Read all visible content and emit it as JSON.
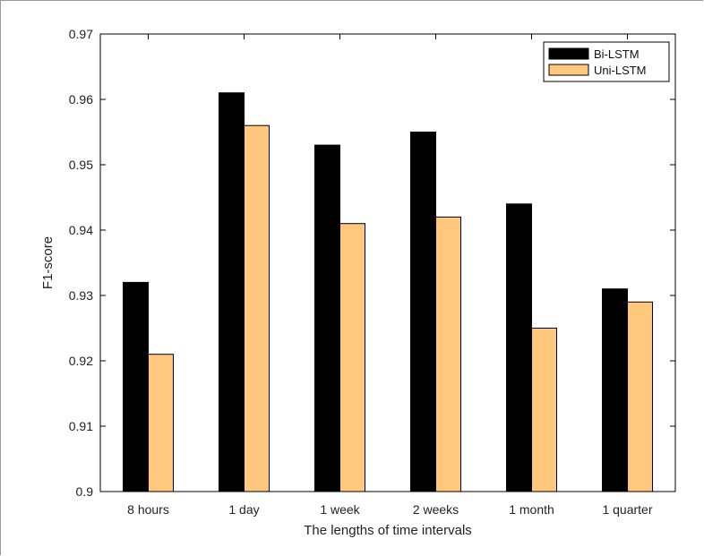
{
  "chart_data": {
    "type": "bar",
    "title": "",
    "xlabel": "The lengths of time intervals",
    "ylabel": "F1-score",
    "categories": [
      "8 hours",
      "1 day",
      "1 week",
      "2 weeks",
      "1 month",
      "1 quarter"
    ],
    "series": [
      {
        "name": "Bi-LSTM",
        "color": "#000000",
        "values": [
          0.932,
          0.961,
          0.953,
          0.955,
          0.944,
          0.931
        ]
      },
      {
        "name": "Uni-LSTM",
        "color": "#FFC87C",
        "values": [
          0.921,
          0.956,
          0.941,
          0.942,
          0.925,
          0.929
        ]
      }
    ],
    "ylim": [
      0.9,
      0.97
    ],
    "yticks": [
      "0.9",
      "0.91",
      "0.92",
      "0.93",
      "0.94",
      "0.95",
      "0.96",
      "0.97"
    ],
    "grid": false,
    "legend": "top-right"
  }
}
